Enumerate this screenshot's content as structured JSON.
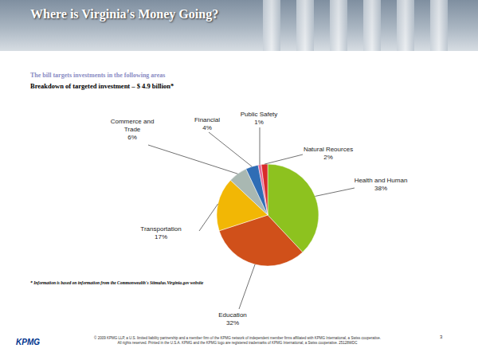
{
  "slide_title": "Where is Virginia's Money Going?",
  "footnote": "* Information is based on information from the Commonwealth's Stimulus.Virginia.gov website",
  "footer": {
    "logo": "KPMG",
    "copyright": "© 2009 KPMG LLP, a U.S. limited liability partnership and a member firm of the KPMG network of independent member firms affiliated with KPMG International, a Swiss cooperative. All rights reserved. Printed in the U.S.A. KPMG and the KPMG logo are registered trademarks of KPMG International, a Swiss cooperative. 25128WDC",
    "page": "3"
  },
  "chart_data": {
    "type": "pie",
    "subtitle": "The bill targets investments in the following areas",
    "title": "Breakdown of targeted investment – $ 4.9 billion*",
    "categories": [
      "Health and Human",
      "Education",
      "Transportation",
      "Commerce and Trade",
      "Financial",
      "Public Safety",
      "Natural Reources"
    ],
    "values": [
      38,
      32,
      17,
      6,
      4,
      1,
      2
    ],
    "value_labels": [
      "38%",
      "32%",
      "17%",
      "6%",
      "4%",
      "1%",
      "2%"
    ],
    "colors": [
      "#8dc21f",
      "#d0501a",
      "#f2b705",
      "#a9b8b2",
      "#2f6db5",
      "#e56b9a",
      "#d92b2b"
    ],
    "data_labels": true
  }
}
